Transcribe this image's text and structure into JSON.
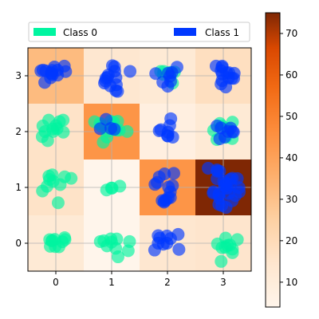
{
  "chart_data": {
    "type": "heatmap",
    "title": "",
    "xlabel": "",
    "ylabel": "",
    "x_ticks": [
      "0",
      "1",
      "2",
      "3"
    ],
    "y_ticks": [
      "0",
      "1",
      "2",
      "3"
    ],
    "xlim": [
      -0.5,
      3.5
    ],
    "ylim": [
      -0.5,
      3.5
    ],
    "grid": true,
    "legend_placement": "top",
    "heatmap": {
      "rows": [
        0,
        1,
        2,
        3
      ],
      "cols": [
        0,
        1,
        2,
        3
      ],
      "values": [
        [
          12,
          4,
          14,
          15
        ],
        [
          16,
          4,
          44,
          75
        ],
        [
          16,
          44,
          8,
          12
        ],
        [
          32,
          14,
          12,
          18
        ]
      ]
    },
    "colorbar": {
      "colormap": "Oranges",
      "min": 4,
      "max": 75,
      "ticks": [
        "10",
        "20",
        "30",
        "40",
        "50",
        "60",
        "70"
      ],
      "tick_values": [
        10,
        20,
        30,
        40,
        50,
        60,
        70
      ]
    },
    "series": [
      {
        "name": "Class 0",
        "color": "#00f5a0",
        "clusters": [
          {
            "x": 0,
            "y": 0,
            "n": 10
          },
          {
            "x": 1,
            "y": 0,
            "n": 10
          },
          {
            "x": 3,
            "y": 0,
            "n": 10
          },
          {
            "x": 0,
            "y": 1,
            "n": 10
          },
          {
            "x": 1,
            "y": 1,
            "n": 4
          },
          {
            "x": 0,
            "y": 2,
            "n": 12
          },
          {
            "x": 1,
            "y": 2,
            "n": 14
          },
          {
            "x": 3,
            "y": 2,
            "n": 8
          },
          {
            "x": 2,
            "y": 3,
            "n": 6
          }
        ]
      },
      {
        "name": "Class 1",
        "color": "#0038ff",
        "clusters": [
          {
            "x": 2,
            "y": 0,
            "n": 10
          },
          {
            "x": 2,
            "y": 1,
            "n": 14
          },
          {
            "x": 3,
            "y": 1,
            "n": 28
          },
          {
            "x": 1,
            "y": 2,
            "n": 4
          },
          {
            "x": 2,
            "y": 2,
            "n": 8
          },
          {
            "x": 3,
            "y": 2,
            "n": 8
          },
          {
            "x": 0,
            "y": 3,
            "n": 14
          },
          {
            "x": 1,
            "y": 3,
            "n": 14
          },
          {
            "x": 2,
            "y": 3,
            "n": 8
          },
          {
            "x": 3,
            "y": 3,
            "n": 14
          }
        ]
      }
    ]
  }
}
